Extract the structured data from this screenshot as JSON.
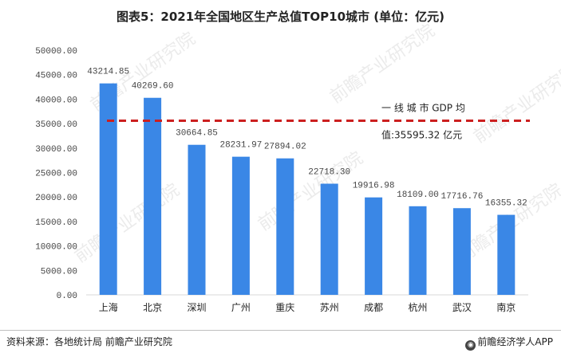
{
  "chart_data": {
    "type": "bar",
    "title": "图表5：2021年全国地区生产总值TOP10城市 (单位：亿元)",
    "categories": [
      "上海",
      "北京",
      "深圳",
      "广州",
      "重庆",
      "苏州",
      "成都",
      "杭州",
      "武汉",
      "南京"
    ],
    "values": [
      43214.85,
      40269.6,
      30664.85,
      28231.97,
      27894.02,
      22718.3,
      19916.98,
      18109.0,
      17716.76,
      16355.32
    ],
    "value_labels": [
      "43214.85",
      "40269.60",
      "30664.85",
      "28231.97",
      "27894.02",
      "22718.30",
      "19916.98",
      "18109.00",
      "17716.76",
      "16355.32"
    ],
    "ylim": [
      0,
      50000
    ],
    "yticks": [
      0,
      5000,
      10000,
      15000,
      20000,
      25000,
      30000,
      35000,
      40000,
      45000,
      50000
    ],
    "ytick_labels": [
      "0.00",
      "5000.00",
      "10000.00",
      "15000.00",
      "20000.00",
      "25000.00",
      "30000.00",
      "35000.00",
      "40000.00",
      "45000.00",
      "50000.00"
    ],
    "xlabel": "",
    "ylabel": "",
    "grid": false,
    "bar_color": "#3a87e6",
    "reference_line": {
      "value": 35595.32,
      "color": "#cc1f1f",
      "label_line1": "一 线 城 市   GDP   均",
      "label_line2": "值:35595.32 亿元"
    }
  },
  "footer": {
    "source": "资料来源：各地统计局 前瞻产业研究院",
    "brand": "前瞻经济学人APP",
    "brand_icon": "qianzhan-logo-icon"
  },
  "watermark": "前瞻产业研究院"
}
